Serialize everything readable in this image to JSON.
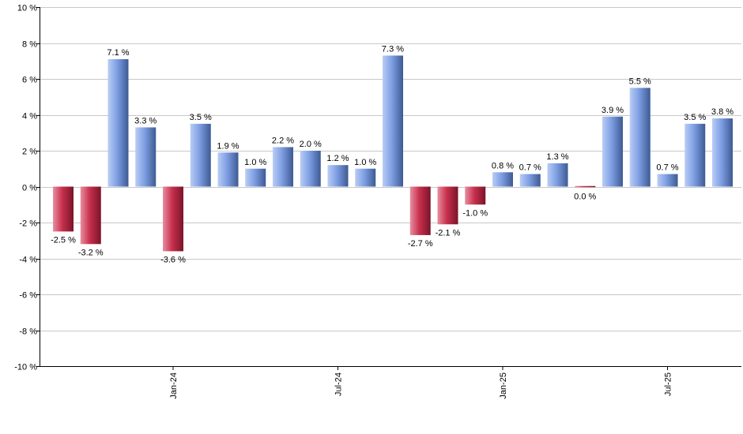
{
  "chart_data": {
    "type": "bar",
    "title": "",
    "xlabel": "",
    "ylabel": "",
    "ylim": [
      -10,
      10
    ],
    "y_ticks": [
      10,
      8,
      6,
      4,
      2,
      0,
      -2,
      -4,
      -6,
      -8,
      -10
    ],
    "y_tick_labels": [
      "10 %",
      "8 %",
      "6 %",
      "4 %",
      "2 %",
      "0 %",
      "-2 %",
      "-4 %",
      "-6 %",
      "-8 %",
      "-10 %"
    ],
    "grid": true,
    "positive_color": "#7f9fe0",
    "negative_color": "#c8304e",
    "values": [
      -2.5,
      -3.2,
      7.1,
      3.3,
      -3.6,
      3.5,
      1.9,
      1.0,
      2.2,
      2.0,
      1.2,
      1.0,
      7.3,
      -2.7,
      -2.1,
      -1.0,
      0.8,
      0.7,
      1.3,
      0.0,
      3.9,
      5.5,
      0.7,
      3.5,
      3.8
    ],
    "value_labels": [
      "-2.5 %",
      "-3.2 %",
      "7.1 %",
      "3.3 %",
      "-3.6 %",
      "3.5 %",
      "1.9 %",
      "1.0 %",
      "2.2 %",
      "2.0 %",
      "1.2 %",
      "1.0 %",
      "7.3 %",
      "-2.7 %",
      "-2.1 %",
      "-1.0 %",
      "0.8 %",
      "0.7 %",
      "1.3 %",
      "0.0 %",
      "3.9 %",
      "5.5 %",
      "0.7 %",
      "3.5 %",
      "3.8 %"
    ],
    "x_ticks": [
      {
        "label": "Jan-24",
        "bar_index": 4
      },
      {
        "label": "Jul-24",
        "bar_index": 10
      },
      {
        "label": "Jan-25",
        "bar_index": 16
      },
      {
        "label": "Jul-25",
        "bar_index": 22
      }
    ]
  }
}
